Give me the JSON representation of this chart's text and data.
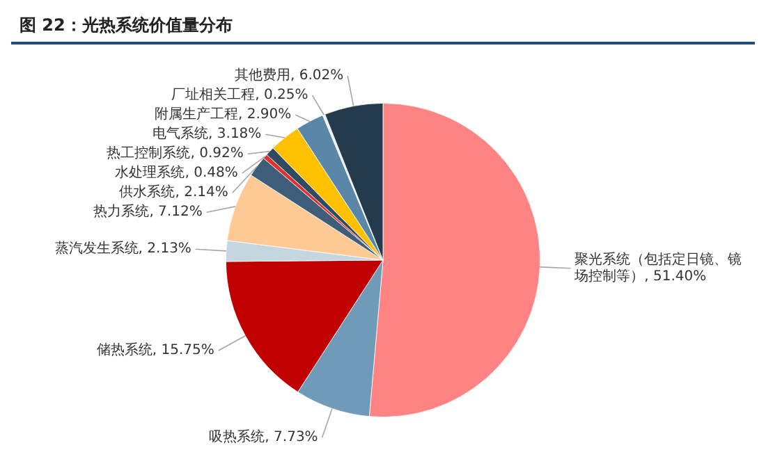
{
  "chart_data": {
    "type": "pie",
    "title": "图 22：光热系统价值量分布",
    "categories": [
      "聚光系统（包括定日镜、镜场控制等）",
      "吸热系统",
      "储热系统",
      "蒸汽发生系统",
      "热力系统",
      "供水系统",
      "水处理系统",
      "热工控制系统",
      "电气系统",
      "附属生产工程",
      "厂址相关工程",
      "其他费用"
    ],
    "values": [
      51.4,
      7.73,
      15.75,
      2.13,
      7.12,
      2.14,
      0.48,
      0.92,
      3.18,
      2.9,
      0.25,
      6.02
    ],
    "value_labels": [
      "51.40%",
      "7.73%",
      "15.75%",
      "2.13%",
      "7.12%",
      "2.14%",
      "0.48%",
      "0.92%",
      "3.18%",
      "2.90%",
      "0.25%",
      "6.02%"
    ],
    "colors": [
      "#ff8383",
      "#6f9ab8",
      "#c00000",
      "#c5d6e0",
      "#ffc996",
      "#3e5d78",
      "#e0312f",
      "#2f4a63",
      "#ffc000",
      "#5a87a8",
      "#e8eef2",
      "#243b4e"
    ],
    "legend": false
  }
}
